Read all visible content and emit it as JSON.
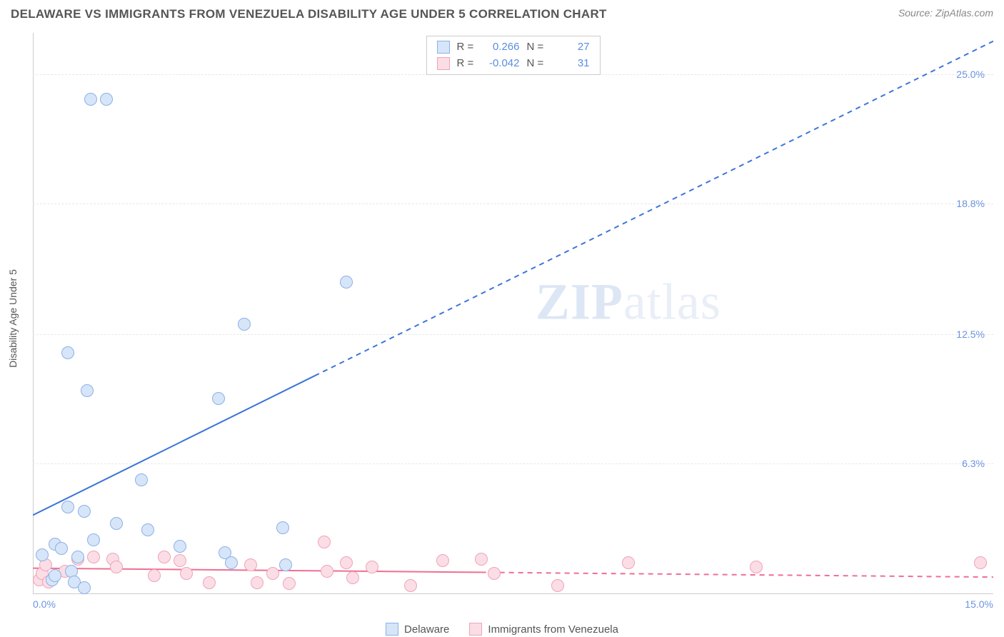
{
  "header": {
    "title": "DELAWARE VS IMMIGRANTS FROM VENEZUELA DISABILITY AGE UNDER 5 CORRELATION CHART",
    "source_label": "Source: ZipAtlas.com"
  },
  "chart": {
    "type": "scatter",
    "ylabel": "Disability Age Under 5",
    "xlim": [
      0,
      15
    ],
    "ylim": [
      0,
      27
    ],
    "y_gridlines": [
      6.3,
      12.5,
      18.8,
      25.0
    ],
    "ytick_labels": [
      "6.3%",
      "12.5%",
      "18.8%",
      "25.0%"
    ],
    "xtick_left": "0.0%",
    "xtick_right": "15.0%",
    "background_color": "#ffffff",
    "grid_color": "#e8e8e8",
    "axis_color": "#cccccc",
    "label_color": "#555555",
    "tick_label_color": "#6b93e0",
    "title_fontsize": 17,
    "label_fontsize": 14
  },
  "watermark": {
    "text_bold": "ZIP",
    "text_light": "atlas"
  },
  "series": {
    "delaware": {
      "name": "Delaware",
      "marker_color_fill": "#d7e5f8",
      "marker_color_stroke": "#8ab1e8",
      "marker_radius": 9,
      "r_value": "0.266",
      "n_value": "27",
      "line_color": "#3b73d9",
      "line_width": 2,
      "solid_line": {
        "x1": 0,
        "y1": 3.8,
        "x2": 4.4,
        "y2": 10.5
      },
      "dashed_line": {
        "x1": 4.4,
        "y1": 10.5,
        "x2": 15,
        "y2": 26.6
      },
      "points": [
        [
          0.9,
          23.8
        ],
        [
          1.15,
          23.8
        ],
        [
          0.55,
          11.6
        ],
        [
          0.85,
          9.8
        ],
        [
          4.9,
          15.0
        ],
        [
          3.3,
          13.0
        ],
        [
          2.9,
          9.4
        ],
        [
          1.7,
          5.5
        ],
        [
          0.55,
          4.2
        ],
        [
          0.8,
          4.0
        ],
        [
          0.35,
          2.4
        ],
        [
          0.45,
          2.2
        ],
        [
          0.15,
          1.9
        ],
        [
          0.3,
          0.7
        ],
        [
          0.35,
          0.9
        ],
        [
          0.6,
          1.1
        ],
        [
          0.65,
          0.6
        ],
        [
          0.8,
          0.3
        ],
        [
          0.95,
          2.6
        ],
        [
          1.3,
          3.4
        ],
        [
          1.8,
          3.1
        ],
        [
          2.3,
          2.3
        ],
        [
          3.0,
          2.0
        ],
        [
          3.1,
          1.5
        ],
        [
          3.9,
          3.2
        ],
        [
          3.95,
          1.4
        ],
        [
          0.7,
          1.8
        ]
      ]
    },
    "venezuela": {
      "name": "Immigrants from Venezuela",
      "marker_color_fill": "#fbdde6",
      "marker_color_stroke": "#efa3b8",
      "marker_radius": 9,
      "r_value": "-0.042",
      "n_value": "31",
      "line_color": "#ef6f93",
      "line_width": 2,
      "solid_line": {
        "x1": 0,
        "y1": 1.25,
        "x2": 7.0,
        "y2": 1.05
      },
      "dashed_line": {
        "x1": 7.0,
        "y1": 1.05,
        "x2": 15,
        "y2": 0.82
      },
      "points": [
        [
          0.1,
          0.7
        ],
        [
          0.15,
          1.0
        ],
        [
          0.2,
          1.4
        ],
        [
          0.25,
          0.6
        ],
        [
          0.5,
          1.1
        ],
        [
          0.7,
          1.7
        ],
        [
          0.95,
          1.8
        ],
        [
          1.25,
          1.7
        ],
        [
          1.3,
          1.3
        ],
        [
          1.9,
          0.9
        ],
        [
          2.05,
          1.8
        ],
        [
          2.3,
          1.6
        ],
        [
          2.4,
          1.0
        ],
        [
          2.75,
          0.55
        ],
        [
          3.4,
          1.4
        ],
        [
          3.5,
          0.55
        ],
        [
          3.75,
          1.0
        ],
        [
          4.0,
          0.5
        ],
        [
          4.55,
          2.5
        ],
        [
          4.6,
          1.1
        ],
        [
          4.9,
          1.5
        ],
        [
          5.0,
          0.8
        ],
        [
          5.3,
          1.3
        ],
        [
          5.9,
          0.4
        ],
        [
          6.4,
          1.6
        ],
        [
          7.0,
          1.7
        ],
        [
          7.2,
          1.0
        ],
        [
          8.2,
          0.4
        ],
        [
          9.3,
          1.5
        ],
        [
          11.3,
          1.3
        ],
        [
          14.8,
          1.5
        ]
      ]
    }
  },
  "legend_stats": {
    "r_label": "R =",
    "n_label": "N ="
  },
  "bottom_legend": {
    "items": [
      "delaware",
      "venezuela"
    ]
  }
}
